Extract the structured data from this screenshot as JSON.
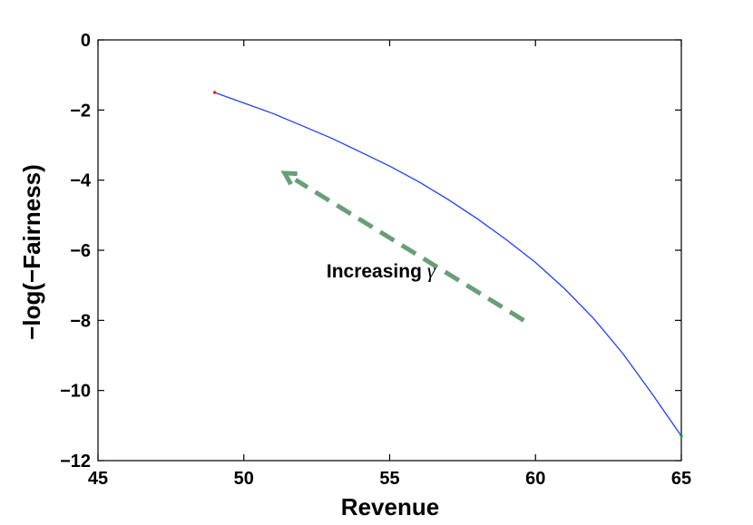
{
  "chart_data": {
    "type": "line",
    "title": "",
    "xlabel": "Revenue",
    "ylabel": "−log(−Fairness)",
    "xlim": [
      45,
      65
    ],
    "ylim": [
      -12,
      0
    ],
    "xticks": [
      45,
      50,
      55,
      60,
      65
    ],
    "yticks": [
      0,
      -2,
      -4,
      -6,
      -8,
      -10,
      -12
    ],
    "xtick_labels": [
      "45",
      "50",
      "55",
      "60",
      "65"
    ],
    "ytick_labels": [
      "0",
      "−2",
      "−4",
      "−6",
      "−8",
      "−10",
      "−12"
    ],
    "grid": false,
    "legend": "none",
    "series": [
      {
        "color": "#1f3fff",
        "x": [
          49.0,
          50.0,
          51.0,
          52.0,
          53.0,
          54.0,
          55.0,
          56.0,
          57.0,
          58.0,
          59.0,
          60.0,
          61.0,
          62.0,
          63.0,
          64.0,
          65.0
        ],
        "y": [
          -1.5,
          -1.8,
          -2.1,
          -2.45,
          -2.8,
          -3.2,
          -3.6,
          -4.05,
          -4.55,
          -5.1,
          -5.7,
          -6.35,
          -7.1,
          -7.95,
          -8.95,
          -10.1,
          -11.3
        ]
      }
    ],
    "start_marker": {
      "x": 49.0,
      "y": -1.5,
      "color": "#ff0000"
    },
    "end_marker": {
      "x": 65.0,
      "y": -11.3,
      "color": "#00b000"
    },
    "annotation": {
      "text": "Increasing ",
      "symbol": "γ",
      "x": 54.7,
      "y": -6.6,
      "arrow": {
        "from": [
          59.6,
          -8.0
        ],
        "to": [
          51.4,
          -3.8
        ],
        "color": "#6a9e78"
      }
    }
  }
}
